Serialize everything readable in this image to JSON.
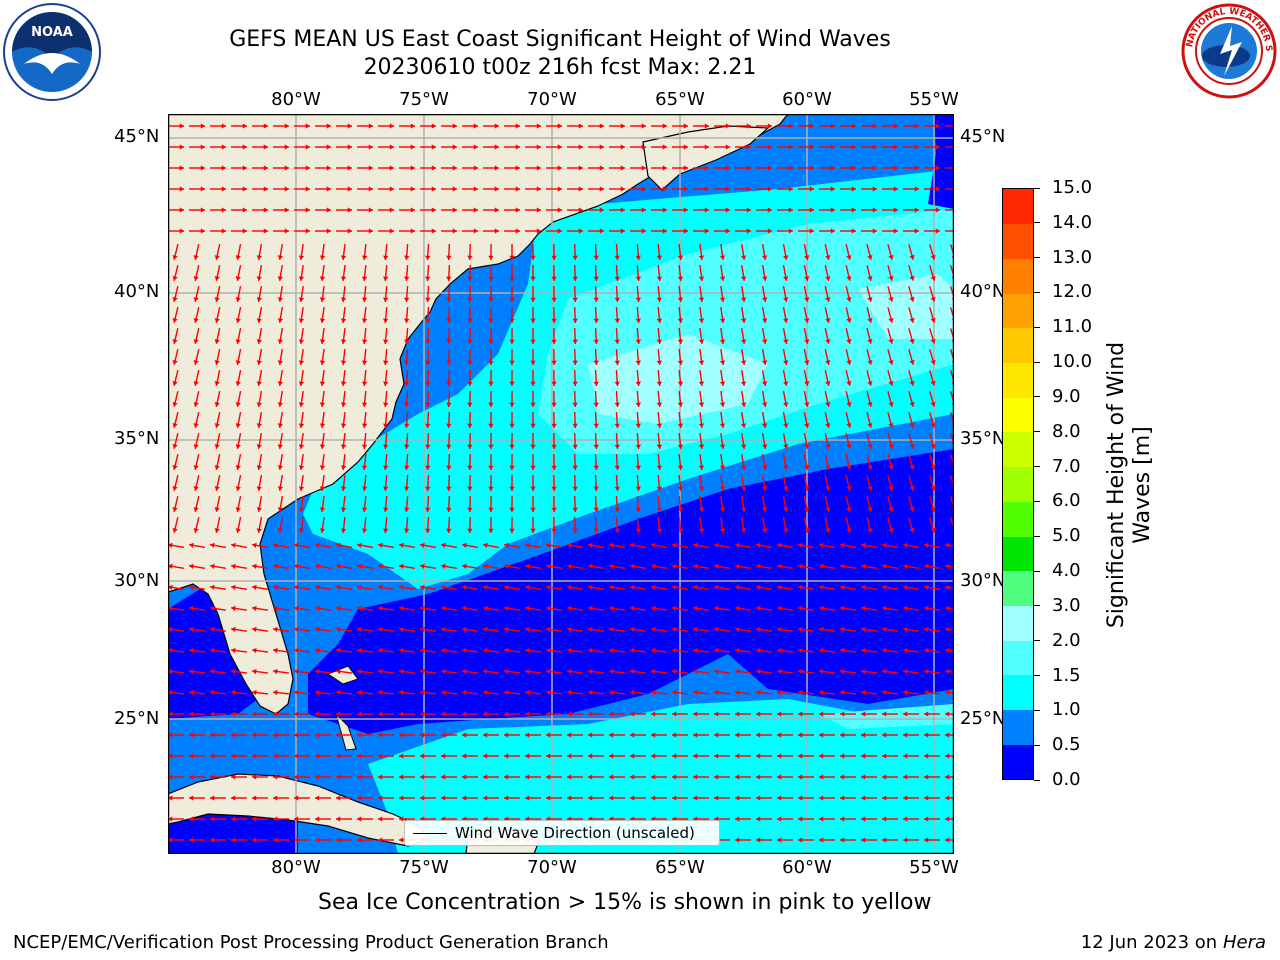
{
  "header": {
    "title_line1": "GEFS MEAN US East Coast Significant Height of Wind Waves",
    "title_line2": "20230610 t00z 216h fcst   Max: 2.21"
  },
  "logos": {
    "noaa": {
      "text": "NOAA"
    },
    "nws": {
      "text": "NATIONAL WEATHER SERVICE"
    }
  },
  "map": {
    "lon_labels": [
      "80°W",
      "75°W",
      "70°W",
      "65°W",
      "60°W",
      "55°W"
    ],
    "lat_labels": [
      "45°N",
      "40°N",
      "35°N",
      "30°N",
      "25°N"
    ],
    "land_color": "#efecdc",
    "arrow_color": "#ff0000",
    "legend_label": "Wind Wave Direction (unscaled)"
  },
  "colorbar": {
    "title_line1": "Significant Height of Wind",
    "title_line2": "Waves [m]",
    "levels": [
      "0.0",
      "0.5",
      "1.0",
      "1.5",
      "2.0",
      "3.0",
      "4.0",
      "5.0",
      "6.0",
      "7.0",
      "8.0",
      "9.0",
      "10.0",
      "11.0",
      "12.0",
      "13.0",
      "14.0",
      "15.0"
    ],
    "colors": [
      "#0000ff",
      "#0080ff",
      "#00ffff",
      "#50ffff",
      "#a0ffff",
      "#50ff80",
      "#00e600",
      "#50ff00",
      "#a0ff00",
      "#ccff00",
      "#ffff00",
      "#ffe600",
      "#ffc800",
      "#ffa000",
      "#ff8000",
      "#ff5000",
      "#ff2800"
    ]
  },
  "footer": {
    "sea_ice_note": "Sea Ice Concentration > 15% is shown in pink to yellow",
    "branch": "NCEP/EMC/Verification Post Processing Product Generation Branch",
    "date": "12 Jun 2023 on",
    "machine": "Hera"
  }
}
